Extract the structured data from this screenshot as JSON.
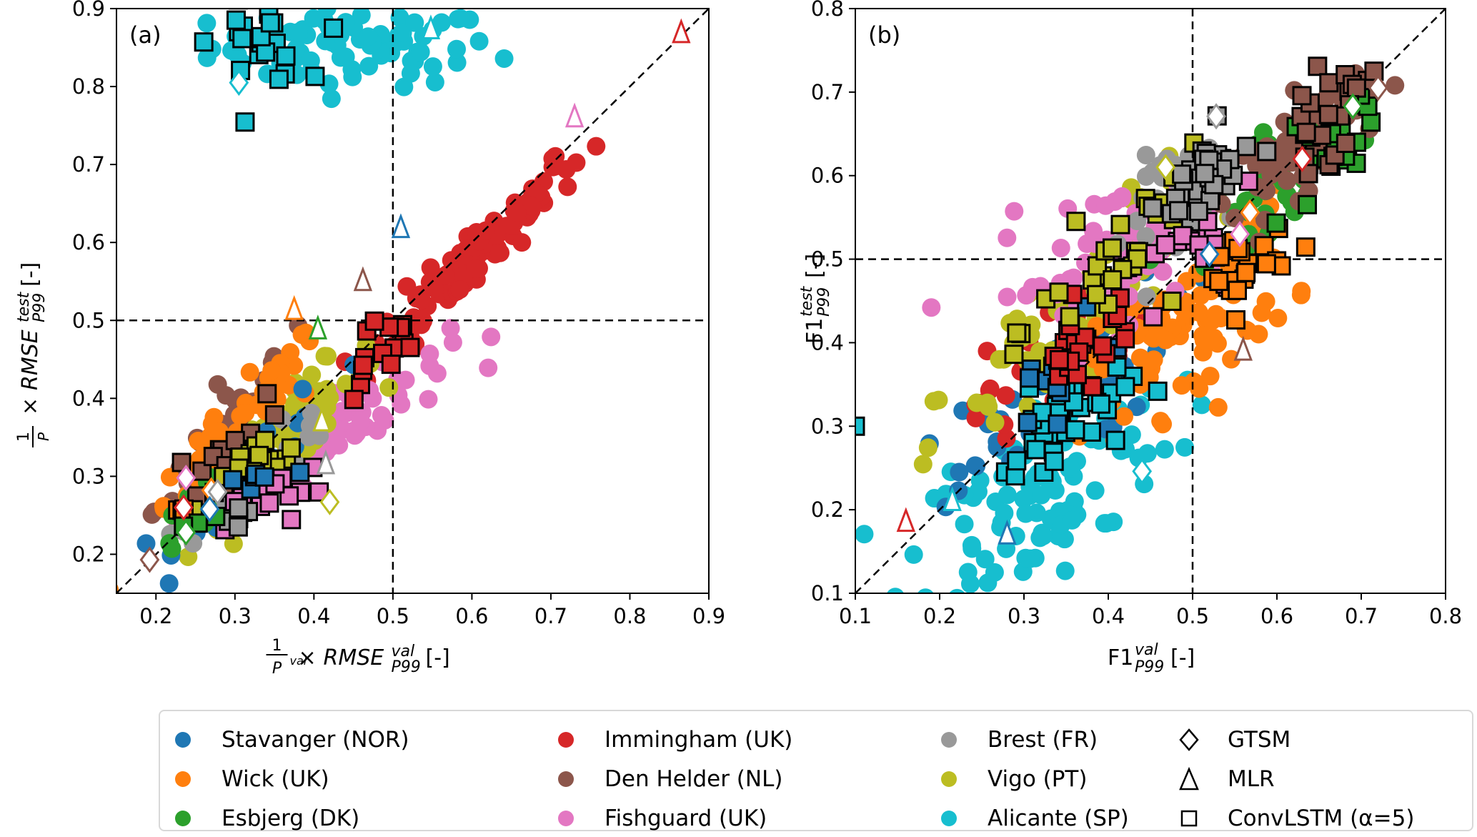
{
  "chart_data": [
    {
      "type": "scatter",
      "panel_label": "(a)",
      "xlabel": "1/P99^val × RMSE_P99^val [-]",
      "ylabel": "1/P99^test × RMSE_P99^test [-]",
      "xlim": [
        0.15,
        0.9
      ],
      "ylim": [
        0.15,
        0.9
      ],
      "xticks": [
        "0.2",
        "0.3",
        "0.4",
        "0.5",
        "0.6",
        "0.7",
        "0.8",
        "0.9"
      ],
      "yticks": [
        "0.2",
        "0.3",
        "0.4",
        "0.5",
        "0.6",
        "0.7",
        "0.8",
        "0.9"
      ],
      "reference_lines": {
        "diagonal": true,
        "vline": 0.5,
        "hline": 0.5
      },
      "clusters": [
        {
          "station": "Alicante (SP)",
          "cx": 0.45,
          "cy": 0.85,
          "sx": 0.09,
          "sy": 0.025,
          "n": 80,
          "rho": 0.0
        },
        {
          "station": "Immingham (UK)",
          "cx": 0.6,
          "cy": 0.58,
          "sx": 0.07,
          "sy": 0.07,
          "n": 110,
          "rho": 0.96
        },
        {
          "station": "Fishguard (UK)",
          "cx": 0.43,
          "cy": 0.36,
          "sx": 0.07,
          "sy": 0.05,
          "n": 70,
          "rho": 0.9
        },
        {
          "station": "Vigo (PT)",
          "cx": 0.36,
          "cy": 0.35,
          "sx": 0.06,
          "sy": 0.06,
          "n": 70,
          "rho": 0.92
        },
        {
          "station": "Den Helder (NL)",
          "cx": 0.3,
          "cy": 0.37,
          "sx": 0.05,
          "sy": 0.06,
          "n": 60,
          "rho": 0.93
        },
        {
          "station": "Wick (UK)",
          "cx": 0.3,
          "cy": 0.35,
          "sx": 0.06,
          "sy": 0.07,
          "n": 50,
          "rho": 0.93
        },
        {
          "station": "Stavanger (NOR)",
          "cx": 0.33,
          "cy": 0.32,
          "sx": 0.05,
          "sy": 0.05,
          "n": 30,
          "rho": 0.9
        },
        {
          "station": "Brest (FR)",
          "cx": 0.33,
          "cy": 0.31,
          "sx": 0.05,
          "sy": 0.04,
          "n": 30,
          "rho": 0.9
        },
        {
          "station": "Esbjerg (DK)",
          "cx": 0.26,
          "cy": 0.27,
          "sx": 0.03,
          "sy": 0.03,
          "n": 20,
          "rho": 0.9
        }
      ],
      "convlstm_clusters": [
        {
          "station": "Alicante (SP)",
          "cx": 0.33,
          "cy": 0.855,
          "sx": 0.03,
          "sy": 0.025,
          "n": 22,
          "rho": 0.0
        },
        {
          "station": "Immingham (UK)",
          "cx": 0.48,
          "cy": 0.46,
          "sx": 0.025,
          "sy": 0.03,
          "n": 16,
          "rho": 0.6
        },
        {
          "station": "Den Helder (NL)",
          "cx": 0.28,
          "cy": 0.32,
          "sx": 0.03,
          "sy": 0.03,
          "n": 14,
          "rho": 0.7
        },
        {
          "station": "Vigo (PT)",
          "cx": 0.32,
          "cy": 0.3,
          "sx": 0.035,
          "sy": 0.03,
          "n": 22,
          "rho": 0.7
        },
        {
          "station": "Fishguard (UK)",
          "cx": 0.35,
          "cy": 0.27,
          "sx": 0.03,
          "sy": 0.025,
          "n": 14,
          "rho": 0.6
        },
        {
          "station": "Brest (FR)",
          "cx": 0.31,
          "cy": 0.25,
          "sx": 0.02,
          "sy": 0.015,
          "n": 6,
          "rho": 0.5
        },
        {
          "station": "Stavanger (NOR)",
          "cx": 0.33,
          "cy": 0.29,
          "sx": 0.03,
          "sy": 0.03,
          "n": 6,
          "rho": 0.5
        },
        {
          "station": "Wick (UK)",
          "cx": 0.23,
          "cy": 0.26,
          "sx": 0.01,
          "sy": 0.01,
          "n": 3,
          "rho": 0.5
        },
        {
          "station": "Esbjerg (DK)",
          "cx": 0.25,
          "cy": 0.24,
          "sx": 0.015,
          "sy": 0.01,
          "n": 3,
          "rho": 0.5
        }
      ],
      "mlr": [
        {
          "station": "Immingham (UK)",
          "x": 0.865,
          "y": 0.868
        },
        {
          "station": "Fishguard (UK)",
          "x": 0.73,
          "y": 0.76
        },
        {
          "station": "Alicante (SP)",
          "x": 0.548,
          "y": 0.873
        },
        {
          "station": "Stavanger (NOR)",
          "x": 0.51,
          "y": 0.618
        },
        {
          "station": "Den Helder (NL)",
          "x": 0.462,
          "y": 0.55
        },
        {
          "station": "Wick (UK)",
          "x": 0.375,
          "y": 0.513
        },
        {
          "station": "Esbjerg (DK)",
          "x": 0.405,
          "y": 0.488
        },
        {
          "station": "Vigo (PT)",
          "x": 0.41,
          "y": 0.37
        },
        {
          "station": "Brest (FR)",
          "x": 0.415,
          "y": 0.315
        }
      ],
      "gtsm": [
        {
          "station": "Alicante (SP)",
          "x": 0.305,
          "y": 0.805
        },
        {
          "station": "Vigo (PT)",
          "x": 0.42,
          "y": 0.267
        },
        {
          "station": "Fishguard (UK)",
          "x": 0.238,
          "y": 0.298
        },
        {
          "station": "Wick (UK)",
          "x": 0.27,
          "y": 0.282
        },
        {
          "station": "Brest (FR)",
          "x": 0.278,
          "y": 0.28
        },
        {
          "station": "Immingham (UK)",
          "x": 0.235,
          "y": 0.26
        },
        {
          "station": "Stavanger (NOR)",
          "x": 0.268,
          "y": 0.258
        },
        {
          "station": "Esbjerg (DK)",
          "x": 0.238,
          "y": 0.228
        },
        {
          "station": "Den Helder (NL)",
          "x": 0.192,
          "y": 0.193
        }
      ]
    },
    {
      "type": "scatter",
      "panel_label": "(b)",
      "xlabel": "F1_P99^val [-]",
      "ylabel": "F1_P99^test [-]",
      "xlim": [
        0.1,
        0.8
      ],
      "ylim": [
        0.1,
        0.8
      ],
      "xticks": [
        "0.1",
        "0.2",
        "0.3",
        "0.4",
        "0.5",
        "0.6",
        "0.7",
        "0.8"
      ],
      "yticks": [
        "0.1",
        "0.2",
        "0.3",
        "0.4",
        "0.5",
        "0.6",
        "0.7",
        "0.8"
      ],
      "reference_lines": {
        "diagonal": true,
        "vline": 0.5,
        "hline": 0.5
      },
      "clusters": [
        {
          "station": "Alicante (SP)",
          "cx": 0.32,
          "cy": 0.22,
          "sx": 0.08,
          "sy": 0.07,
          "n": 110,
          "rho": 0.6
        },
        {
          "station": "Stavanger (NOR)",
          "cx": 0.3,
          "cy": 0.3,
          "sx": 0.09,
          "sy": 0.08,
          "n": 50,
          "rho": 0.85
        },
        {
          "station": "Immingham (UK)",
          "cx": 0.34,
          "cy": 0.38,
          "sx": 0.05,
          "sy": 0.05,
          "n": 40,
          "rho": 0.7
        },
        {
          "station": "Vigo (PT)",
          "cx": 0.36,
          "cy": 0.42,
          "sx": 0.08,
          "sy": 0.09,
          "n": 70,
          "rho": 0.85
        },
        {
          "station": "Wick (UK)",
          "cx": 0.5,
          "cy": 0.43,
          "sx": 0.06,
          "sy": 0.06,
          "n": 80,
          "rho": 0.6
        },
        {
          "station": "Fishguard (UK)",
          "cx": 0.4,
          "cy": 0.5,
          "sx": 0.07,
          "sy": 0.05,
          "n": 60,
          "rho": 0.5
        },
        {
          "station": "Brest (FR)",
          "cx": 0.5,
          "cy": 0.58,
          "sx": 0.04,
          "sy": 0.04,
          "n": 40,
          "rho": 0.5
        },
        {
          "station": "Esbjerg (DK)",
          "cx": 0.6,
          "cy": 0.6,
          "sx": 0.04,
          "sy": 0.04,
          "n": 50,
          "rho": 0.7
        },
        {
          "station": "Den Helder (NL)",
          "cx": 0.63,
          "cy": 0.64,
          "sx": 0.04,
          "sy": 0.04,
          "n": 60,
          "rho": 0.7
        }
      ],
      "convlstm_clusters": [
        {
          "station": "Alicante (SP)",
          "cx": 0.35,
          "cy": 0.3,
          "sx": 0.04,
          "sy": 0.04,
          "n": 35,
          "rho": 0.6
        },
        {
          "station": "Stavanger (NOR)",
          "cx": 0.34,
          "cy": 0.36,
          "sx": 0.03,
          "sy": 0.03,
          "n": 14,
          "rho": 0.6
        },
        {
          "station": "Immingham (UK)",
          "cx": 0.37,
          "cy": 0.4,
          "sx": 0.03,
          "sy": 0.03,
          "n": 25,
          "rho": 0.6
        },
        {
          "station": "Vigo (PT)",
          "cx": 0.42,
          "cy": 0.5,
          "sx": 0.05,
          "sy": 0.05,
          "n": 30,
          "rho": 0.7
        },
        {
          "station": "Fishguard (UK)",
          "cx": 0.5,
          "cy": 0.5,
          "sx": 0.04,
          "sy": 0.04,
          "n": 18,
          "rho": 0.4
        },
        {
          "station": "Wick (UK)",
          "cx": 0.56,
          "cy": 0.49,
          "sx": 0.025,
          "sy": 0.03,
          "n": 22,
          "rho": 0.4
        },
        {
          "station": "Brest (FR)",
          "cx": 0.52,
          "cy": 0.6,
          "sx": 0.03,
          "sy": 0.03,
          "n": 30,
          "rho": 0.5
        },
        {
          "station": "Esbjerg (DK)",
          "cx": 0.66,
          "cy": 0.62,
          "sx": 0.025,
          "sy": 0.035,
          "n": 20,
          "rho": 0.6
        },
        {
          "station": "Den Helder (NL)",
          "cx": 0.66,
          "cy": 0.67,
          "sx": 0.025,
          "sy": 0.03,
          "n": 22,
          "rho": 0.5
        },
        {
          "station": "Alicante (SP)",
          "cx": 0.1,
          "cy": 0.3,
          "sx": 0.0,
          "sy": 0.0,
          "n": 1,
          "rho": 0.0
        }
      ],
      "mlr": [
        {
          "station": "Immingham (UK)",
          "x": 0.16,
          "y": 0.185
        },
        {
          "station": "Alicante (SP)",
          "x": 0.215,
          "y": 0.21
        },
        {
          "station": "Stavanger (NOR)",
          "x": 0.28,
          "y": 0.17
        },
        {
          "station": "Den Helder (NL)",
          "x": 0.56,
          "y": 0.39
        }
      ],
      "gtsm": [
        {
          "station": "Den Helder (NL)",
          "x": 0.72,
          "y": 0.705
        },
        {
          "station": "Esbjerg (DK)",
          "x": 0.69,
          "y": 0.683
        },
        {
          "station": "Brest (FR)",
          "x": 0.528,
          "y": 0.671
        },
        {
          "station": "Immingham (UK)",
          "x": 0.63,
          "y": 0.62
        },
        {
          "station": "Vigo (PT)",
          "x": 0.468,
          "y": 0.61
        },
        {
          "station": "Wick (UK)",
          "x": 0.568,
          "y": 0.556
        },
        {
          "station": "Fishguard (UK)",
          "x": 0.556,
          "y": 0.53
        },
        {
          "station": "Stavanger (NOR)",
          "x": 0.52,
          "y": 0.506
        },
        {
          "station": "Alicante (SP)",
          "x": 0.44,
          "y": 0.246
        }
      ]
    }
  ],
  "stations": [
    {
      "name": "Stavanger (NOR)",
      "color": "#1f77b4"
    },
    {
      "name": "Wick (UK)",
      "color": "#ff7f0e"
    },
    {
      "name": "Esbjerg (DK)",
      "color": "#2ca02c"
    },
    {
      "name": "Immingham (UK)",
      "color": "#d62728"
    },
    {
      "name": "Den Helder (NL)",
      "color": "#8c564b"
    },
    {
      "name": "Fishguard (UK)",
      "color": "#e377c2"
    },
    {
      "name": "Brest (FR)",
      "color": "#999999"
    },
    {
      "name": "Vigo (PT)",
      "color": "#bcbd22"
    },
    {
      "name": "Alicante (SP)",
      "color": "#17becf"
    }
  ],
  "legend": {
    "stations": [
      "Stavanger (NOR)",
      "Wick (UK)",
      "Esbjerg (DK)",
      "Immingham (UK)",
      "Den Helder (NL)",
      "Fishguard (UK)",
      "Brest (FR)",
      "Vigo (PT)",
      "Alicante (SP)"
    ],
    "models": [
      {
        "label": "GTSM",
        "marker": "diamond"
      },
      {
        "label": "MLR",
        "marker": "triangle"
      },
      {
        "label": "ConvLSTM (α=5)",
        "marker": "square"
      }
    ],
    "placement": "bottom"
  }
}
